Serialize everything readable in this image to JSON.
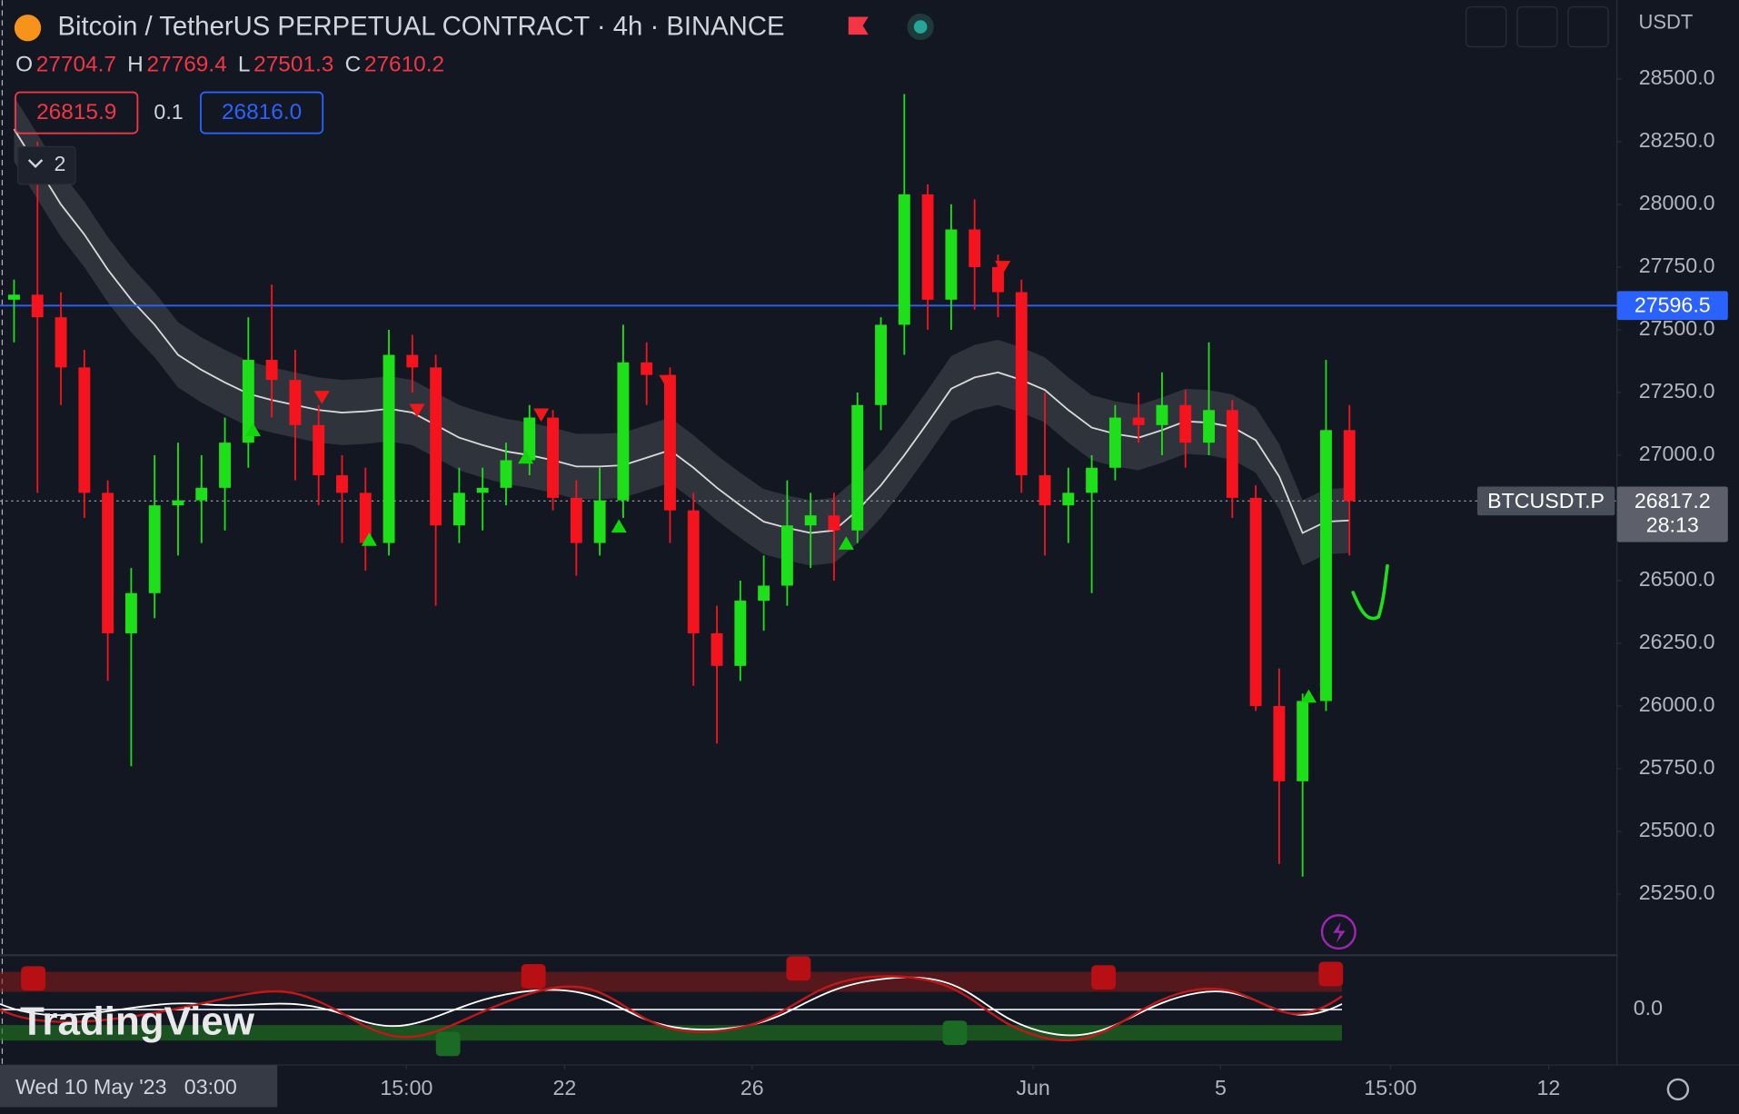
{
  "header": {
    "title": "Bitcoin / TetherUS PERPETUAL CONTRACT · 4h · BINANCE",
    "ohlc": [
      {
        "label": "O",
        "value": 27704.7
      },
      {
        "label": "H",
        "value": 27769.4
      },
      {
        "label": "L",
        "value": 27501.3
      },
      {
        "label": "C",
        "value": 27610.2
      }
    ],
    "sell_price": "26815.9",
    "spread": "0.1",
    "buy_price": "26816.0",
    "indicator_count": "2",
    "currency": "USDT"
  },
  "chart_data": {
    "type": "candlestick",
    "x": [
      0.25,
      0.75,
      1.25,
      1.75,
      2.25,
      2.75,
      3.25,
      3.75,
      4.25,
      4.75,
      5.25,
      5.75,
      6.25,
      6.75,
      7.25,
      7.75,
      8.25,
      8.75,
      9.25,
      9.75,
      10.25,
      10.75,
      11.25,
      11.75,
      12.25,
      12.75,
      13.25,
      13.75,
      14.25,
      14.75,
      15.25,
      15.75,
      16.25,
      16.75,
      17.25,
      17.75,
      18.25,
      18.75,
      19.25,
      19.75,
      20.25,
      20.75,
      21.25,
      21.75,
      22.25,
      22.75,
      23.25,
      23.75,
      24.25,
      24.75,
      25.25,
      25.75,
      26.25,
      26.75,
      27.25,
      27.75,
      28.25,
      28.75
    ],
    "open": [
      27620,
      27640,
      27550,
      27350,
      26850,
      26290,
      26450,
      26800,
      26820,
      26870,
      27050,
      27380,
      27300,
      27120,
      26920,
      26850,
      26650,
      27400,
      27350,
      26720,
      26850,
      26870,
      26980,
      27150,
      26830,
      26650,
      26820,
      27370,
      27320,
      26780,
      26290,
      26160,
      26420,
      26480,
      26720,
      26760,
      26700,
      27200,
      27520,
      28040,
      27620,
      27900,
      27750,
      27650,
      26920,
      26800,
      26850,
      26950,
      27150,
      27120,
      27200,
      27050,
      27180,
      26830,
      26000,
      25700,
      26020,
      27100
    ],
    "high": [
      27700,
      28250,
      27650,
      27420,
      26900,
      26550,
      27000,
      27050,
      27000,
      27150,
      27550,
      27680,
      27420,
      27200,
      27000,
      26950,
      27500,
      27480,
      27400,
      26950,
      26950,
      27050,
      27200,
      27180,
      26900,
      26950,
      27520,
      27450,
      27350,
      26850,
      26400,
      26500,
      26600,
      26900,
      26850,
      26850,
      27250,
      27550,
      28440,
      28080,
      28000,
      28020,
      27800,
      27700,
      27250,
      26950,
      27000,
      27200,
      27250,
      27330,
      27260,
      27450,
      27220,
      26880,
      26150,
      26050,
      27380,
      27200
    ],
    "low": [
      27450,
      26850,
      27200,
      26750,
      26100,
      25760,
      26350,
      26600,
      26650,
      26700,
      26950,
      27150,
      26900,
      26800,
      26650,
      26540,
      26600,
      27250,
      26400,
      26650,
      26700,
      26800,
      26920,
      26780,
      26520,
      26600,
      26750,
      27200,
      26650,
      26080,
      25850,
      26100,
      26300,
      26400,
      26550,
      26500,
      26650,
      27100,
      27400,
      27500,
      27500,
      27580,
      27550,
      26850,
      26600,
      26650,
      26450,
      26900,
      27050,
      27000,
      26950,
      27000,
      26750,
      25980,
      25370,
      25320,
      25980,
      26600
    ],
    "close": [
      27640,
      27550,
      27350,
      26850,
      26290,
      26450,
      26800,
      26820,
      26870,
      27050,
      27380,
      27300,
      27120,
      26920,
      26850,
      26650,
      27400,
      27350,
      26720,
      26850,
      26870,
      26980,
      27150,
      26830,
      26650,
      26820,
      27370,
      27320,
      26780,
      26290,
      26160,
      26420,
      26480,
      26720,
      26760,
      26700,
      27200,
      27520,
      28040,
      27620,
      27900,
      27750,
      27650,
      26920,
      26800,
      26850,
      26950,
      27150,
      27120,
      27200,
      27050,
      27180,
      26830,
      26000,
      25700,
      26020,
      27100,
      26817.2
    ],
    "colors": {
      "up": "#1ee01a",
      "down": "#f5141e"
    },
    "xlim": [
      -0.05,
      34.46
    ],
    "xticks": [
      {
        "value": 8.625,
        "label": "15:00"
      },
      {
        "value": 12,
        "label": "22"
      },
      {
        "value": 16,
        "label": "26"
      },
      {
        "value": 22,
        "label": "Jun"
      },
      {
        "value": 26,
        "label": "5"
      },
      {
        "value": 29.625,
        "label": "15:00"
      },
      {
        "value": 33,
        "label": "12"
      }
    ],
    "ylim": [
      25011,
      28814
    ],
    "yticks": [
      {
        "value": 25250,
        "label": "25250.0"
      },
      {
        "value": 25500,
        "label": "25500.0"
      },
      {
        "value": 25750,
        "label": "25750.0"
      },
      {
        "value": 26000,
        "label": "26000.0"
      },
      {
        "value": 26250,
        "label": "26250.0"
      },
      {
        "value": 26500,
        "label": "26500.0"
      },
      {
        "value": 26750,
        "label": "26750.0"
      },
      {
        "value": 27000,
        "label": "27000.0"
      },
      {
        "value": 27250,
        "label": "27250.0"
      },
      {
        "value": 27500,
        "label": "27500.0"
      },
      {
        "value": 27750,
        "label": "27750.0"
      },
      {
        "value": 28000,
        "label": "28000.0"
      },
      {
        "value": 28250,
        "label": "28250.0"
      },
      {
        "value": 28500,
        "label": "28500.0"
      }
    ],
    "ema": {
      "color": "#d9d9d9",
      "band_width": 260,
      "values": [
        28300,
        28150,
        28000,
        27880,
        27740,
        27620,
        27520,
        27400,
        27340,
        27290,
        27245,
        27220,
        27200,
        27180,
        27170,
        27175,
        27185,
        27170,
        27120,
        27070,
        27040,
        27015,
        27000,
        26980,
        26955,
        26955,
        26960,
        26990,
        27020,
        26950,
        26870,
        26800,
        26735,
        26710,
        26690,
        26700,
        26780,
        26880,
        27000,
        27130,
        27265,
        27310,
        27330,
        27300,
        27260,
        27180,
        27110,
        27085,
        27070,
        27100,
        27135,
        27130,
        27112,
        27060,
        26915,
        26690,
        26735,
        26740
      ]
    },
    "signals": {
      "buy": {
        "color": "#14d60c",
        "x": [
          5.35,
          7.83,
          11.17,
          13.16,
          18.01,
          27.88
        ],
        "y": [
          27102,
          26665,
          26993,
          26718,
          26650,
          26040
        ]
      },
      "sell": {
        "color": "#f01818",
        "x": [
          6.82,
          8.85,
          11.5,
          14.18,
          21.35
        ],
        "y": [
          27230,
          27178,
          27160,
          27293,
          27748
        ]
      }
    },
    "hline": {
      "value": 27596.5,
      "color": "#2962ff"
    },
    "last_price": {
      "value": 26817.2,
      "symbol": "BTCUSDT.P",
      "countdown": "28:13"
    },
    "cursor_label": {
      "value": 0.125,
      "label": "Wed 10 May '23   03:00"
    }
  },
  "oscillator": {
    "zero_label": "0.0"
  },
  "watermark": "TradingView"
}
